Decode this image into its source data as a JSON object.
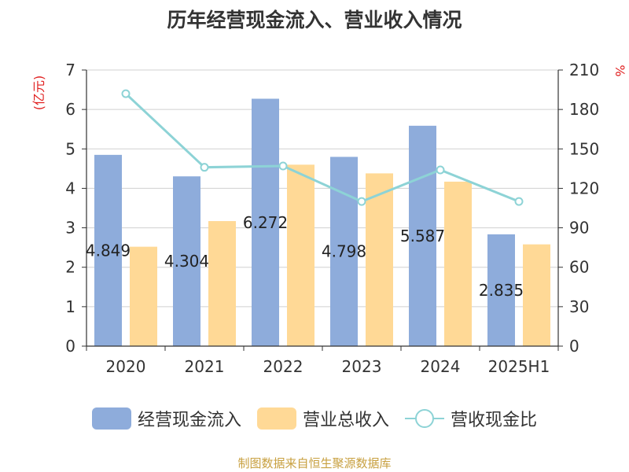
{
  "title": "历年经营现金流入、营业收入情况",
  "source": "制图数据来自恒生聚源数据库",
  "colors": {
    "cash_inflow": "#8eacdb",
    "revenue": "#ffd996",
    "ratio": "#8dd3d6"
  },
  "chart_data": {
    "type": "bar",
    "title": "历年经营现金流入、营业收入情况",
    "categories": [
      "2020",
      "2021",
      "2022",
      "2023",
      "2024",
      "2025H1"
    ],
    "left_axis": {
      "unit": "(亿元)",
      "range": [
        0,
        7
      ],
      "ticks": [
        "0",
        "1",
        "2",
        "3",
        "4",
        "5",
        "6",
        "7"
      ]
    },
    "right_axis": {
      "unit": "%",
      "range": [
        0,
        210
      ],
      "ticks": [
        "0",
        "30",
        "60",
        "90",
        "120",
        "150",
        "180",
        "210"
      ]
    },
    "grid": true,
    "legend_position": "bottom",
    "series": [
      {
        "name": "经营现金流入",
        "type": "bar",
        "axis": "left",
        "values": [
          4.849,
          4.304,
          6.272,
          4.798,
          5.587,
          2.835
        ],
        "labels": [
          "4.849",
          "4.304",
          "6.272",
          "4.798",
          "5.587",
          "2.835"
        ]
      },
      {
        "name": "营业总收入",
        "type": "bar",
        "axis": "left",
        "values": [
          2.52,
          3.17,
          4.6,
          4.38,
          4.17,
          2.58
        ]
      },
      {
        "name": "营收现金比",
        "type": "line",
        "axis": "right",
        "values": [
          192,
          136,
          137,
          110,
          134,
          110
        ]
      }
    ]
  }
}
